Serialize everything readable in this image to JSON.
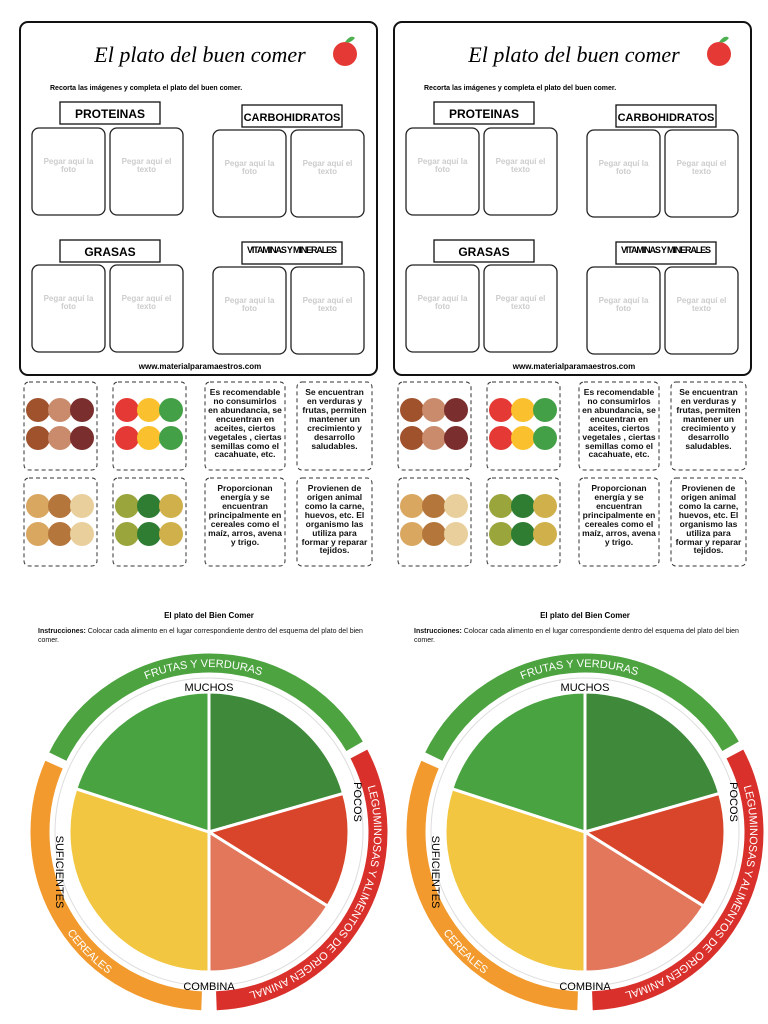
{
  "worksheet": {
    "title": "El plato del buen comer",
    "instructions": "Recorta las imágenes y completa el plato del buen comer.",
    "groups": [
      "PROTEINAS",
      "CARBOHIDRATOS",
      "GRASAS",
      "VITAMINAS Y MINERALES"
    ],
    "photo_box": "Pegar aquí la foto",
    "text_box": "Pegar aquí el texto",
    "footer": "www.materialparamaestros.com"
  },
  "cards": [
    "Es recomendable no consumirlos en abundancia, se encuentran en aceites, ciertos vegetales , ciertas semillas como el cacahuate, etc.",
    "Se encuentran en verduras y frutas, permiten mantener un crecimiento y desarrollo saludables.",
    "Proporcionan energía y se encuentran principalmente en cereales como el maíz, arros, avena y trigo.",
    "Provienen de origen animal como la carne, huevos, etc. El organismo las utiliza para formar y reparar tejidos."
  ],
  "plate": {
    "title": "El plato del Bien Comer",
    "instructions_label": "Instrucciones:",
    "instructions": "Colocar cada alimento en el lugar correspondiente dentro del esquema del plato del bien comer.",
    "ring": [
      "FRUTAS Y VERDURAS",
      "LEGUMINOSAS Y ALIMENTOS DE ORIGEN ANIMAL",
      "CEREALES"
    ],
    "inner": [
      "MUCHOS",
      "POCOS",
      "SUFICIENTES",
      "COMBINA"
    ]
  }
}
